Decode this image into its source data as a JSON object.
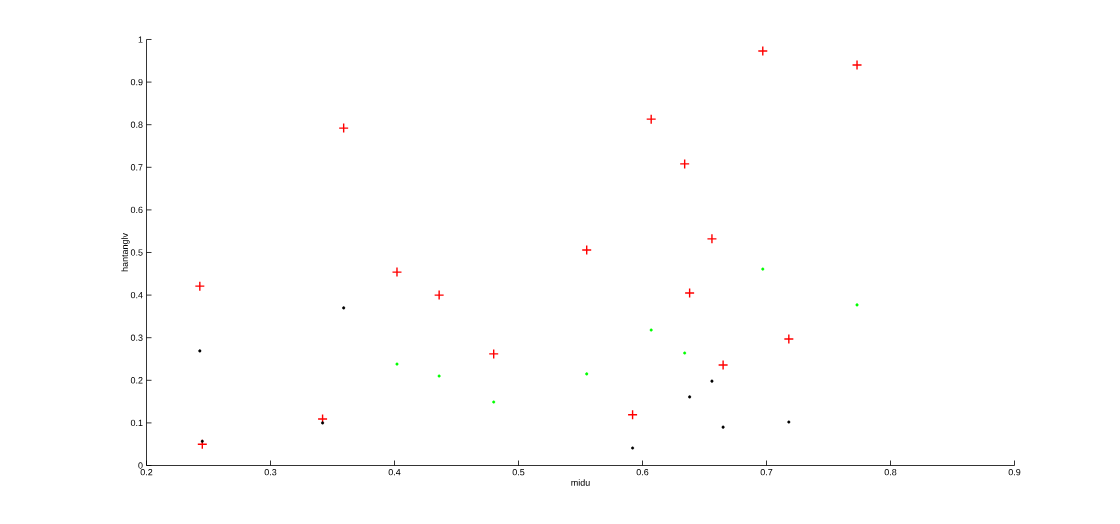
{
  "chart_data": {
    "type": "scatter",
    "xlabel": "midu",
    "ylabel": "hantanglv",
    "xlim": [
      0.2,
      0.9
    ],
    "ylim": [
      0,
      1
    ],
    "xticks": [
      0.2,
      0.3,
      0.4,
      0.5,
      0.6,
      0.7,
      0.8,
      0.9
    ],
    "yticks": [
      0,
      0.1,
      0.2,
      0.3,
      0.4,
      0.5,
      0.6,
      0.7,
      0.8,
      0.9,
      1
    ],
    "series": [
      {
        "color": "#ff0000",
        "marker": "cross",
        "x": [
          0.243,
          0.245,
          0.342,
          0.359,
          0.402,
          0.436,
          0.48,
          0.555,
          0.592,
          0.607,
          0.634,
          0.656,
          0.638,
          0.665,
          0.697,
          0.718,
          0.773
        ],
        "values": [
          0.421,
          0.05,
          0.109,
          0.792,
          0.454,
          0.4,
          0.262,
          0.506,
          0.119,
          0.813,
          0.708,
          0.532,
          0.405,
          0.236,
          0.973,
          0.297,
          0.94
        ]
      },
      {
        "color": "#000000",
        "marker": "circle",
        "x": [
          0.243,
          0.245,
          0.342,
          0.359,
          0.592,
          0.638,
          0.656,
          0.665,
          0.718
        ],
        "values": [
          0.269,
          0.057,
          0.1,
          0.37,
          0.041,
          0.161,
          0.198,
          0.09,
          0.102
        ]
      },
      {
        "color": "#00ff00",
        "marker": "circle",
        "x": [
          0.402,
          0.436,
          0.48,
          0.555,
          0.607,
          0.634,
          0.697,
          0.773
        ],
        "values": [
          0.238,
          0.21,
          0.149,
          0.215,
          0.318,
          0.264,
          0.461,
          0.377
        ]
      }
    ]
  }
}
